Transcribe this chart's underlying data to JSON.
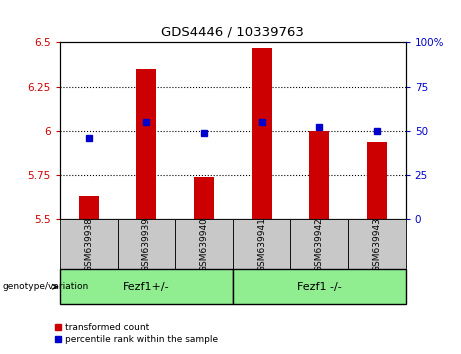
{
  "title": "GDS4446 / 10339763",
  "categories": [
    "GSM639938",
    "GSM639939",
    "GSM639940",
    "GSM639941",
    "GSM639942",
    "GSM639943"
  ],
  "bar_values": [
    5.63,
    6.35,
    5.74,
    6.47,
    6.0,
    5.94
  ],
  "blue_values_left": [
    5.96,
    6.05,
    5.99,
    6.05,
    6.02,
    6.0
  ],
  "bar_color": "#cc0000",
  "blue_color": "#0000cc",
  "ylim_left": [
    5.5,
    6.5
  ],
  "ylim_right": [
    0,
    100
  ],
  "yticks_left": [
    5.5,
    5.75,
    6.0,
    6.25,
    6.5
  ],
  "ytick_labels_left": [
    "5.5",
    "5.75",
    "6",
    "6.25",
    "6.5"
  ],
  "yticks_right": [
    0,
    25,
    50,
    75,
    100
  ],
  "ytick_labels_right": [
    "0",
    "25",
    "50",
    "75",
    "100%"
  ],
  "legend": [
    {
      "label": "transformed count",
      "color": "#cc0000"
    },
    {
      "label": "percentile rank within the sample",
      "color": "#0000cc"
    }
  ],
  "bar_bottom": 5.5,
  "bar_width": 0.35,
  "label_area_color": "#c8c8c8",
  "group_color": "#90ee90",
  "group_label": "genotype/variation",
  "group1_label": "Fezf1+/-",
  "group2_label": "Fezf1 -/-"
}
